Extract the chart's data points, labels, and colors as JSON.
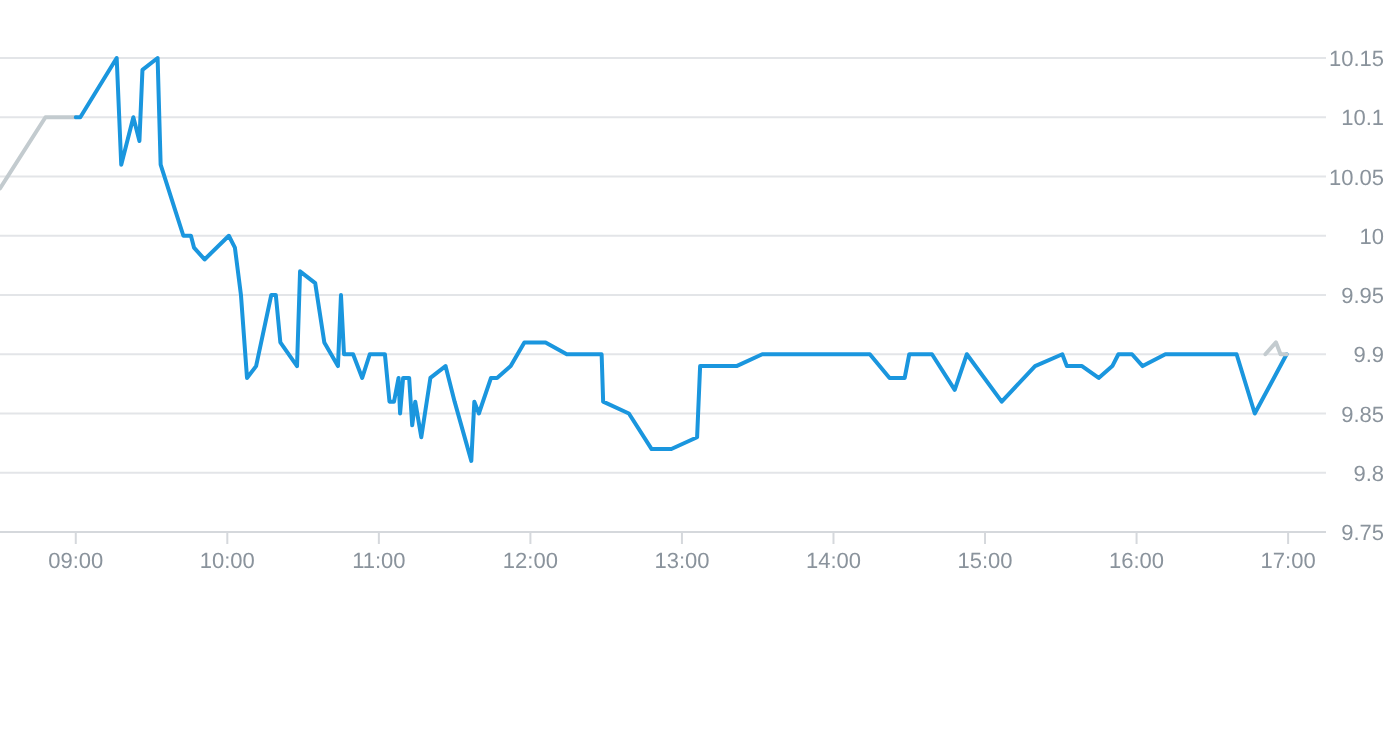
{
  "chart_data": {
    "type": "line",
    "xlim": [
      8.5,
      17.25
    ],
    "ylim": [
      9.75,
      10.15
    ],
    "xticks": [
      {
        "value": 9,
        "label": "09:00"
      },
      {
        "value": 10,
        "label": "10:00"
      },
      {
        "value": 11,
        "label": "11:00"
      },
      {
        "value": 12,
        "label": "12:00"
      },
      {
        "value": 13,
        "label": "13:00"
      },
      {
        "value": 14,
        "label": "14:00"
      },
      {
        "value": 15,
        "label": "15:00"
      },
      {
        "value": 16,
        "label": "16:00"
      },
      {
        "value": 17,
        "label": "17:00"
      }
    ],
    "yticks": [
      9.75,
      9.8,
      9.85,
      9.9,
      9.95,
      10,
      10.05,
      10.1,
      10.15
    ],
    "grid": "y",
    "marker": "none",
    "line_style": "solid",
    "series": [
      {
        "color": "#c3cbcf",
        "x": [
          8.5,
          8.8,
          9.0
        ],
        "values": [
          10.04,
          10.1,
          10.1
        ]
      },
      {
        "color": "#1a96de",
        "x": [
          9.0,
          9.03,
          9.27,
          9.3,
          9.38,
          9.42,
          9.44,
          9.54,
          9.56,
          9.66,
          9.71,
          9.76,
          9.78,
          9.85,
          10.01,
          10.05,
          10.09,
          10.13,
          10.19,
          10.29,
          10.32,
          10.35,
          10.46,
          10.48,
          10.58,
          10.64,
          10.73,
          10.75,
          10.77,
          10.83,
          10.89,
          10.94,
          11.04,
          11.07,
          11.1,
          11.13,
          11.14,
          11.16,
          11.2,
          11.22,
          11.24,
          11.28,
          11.34,
          11.44,
          11.5,
          11.61,
          11.63,
          11.66,
          11.74,
          11.78,
          11.87,
          11.96,
          12.1,
          12.24,
          12.47,
          12.48,
          12.65,
          12.8,
          12.93,
          13.1,
          13.12,
          13.36,
          13.53,
          14.24,
          14.37,
          14.47,
          14.5,
          14.65,
          14.8,
          14.88,
          15.11,
          15.33,
          15.51,
          15.54,
          15.64,
          15.75,
          15.84,
          15.88,
          15.97,
          16.04,
          16.19,
          16.66,
          16.78,
          16.99
        ],
        "values": [
          10.1,
          10.1,
          10.15,
          10.06,
          10.1,
          10.08,
          10.14,
          10.15,
          10.06,
          10.02,
          10.0,
          10.0,
          9.99,
          9.98,
          10.0,
          9.99,
          9.95,
          9.88,
          9.89,
          9.95,
          9.95,
          9.91,
          9.89,
          9.97,
          9.96,
          9.91,
          9.89,
          9.95,
          9.9,
          9.9,
          9.88,
          9.9,
          9.9,
          9.86,
          9.86,
          9.88,
          9.85,
          9.88,
          9.88,
          9.84,
          9.86,
          9.83,
          9.88,
          9.89,
          9.86,
          9.81,
          9.86,
          9.85,
          9.88,
          9.88,
          9.89,
          9.91,
          9.91,
          9.9,
          9.9,
          9.86,
          9.85,
          9.82,
          9.82,
          9.83,
          9.89,
          9.89,
          9.9,
          9.9,
          9.88,
          9.88,
          9.9,
          9.9,
          9.87,
          9.9,
          9.86,
          9.89,
          9.9,
          9.89,
          9.89,
          9.88,
          9.89,
          9.9,
          9.9,
          9.89,
          9.9,
          9.9,
          9.85,
          9.9
        ]
      },
      {
        "color": "#c3cbcf",
        "x": [
          16.85,
          16.92,
          16.95,
          16.99
        ],
        "values": [
          9.9,
          9.91,
          9.9,
          9.9
        ]
      }
    ]
  }
}
